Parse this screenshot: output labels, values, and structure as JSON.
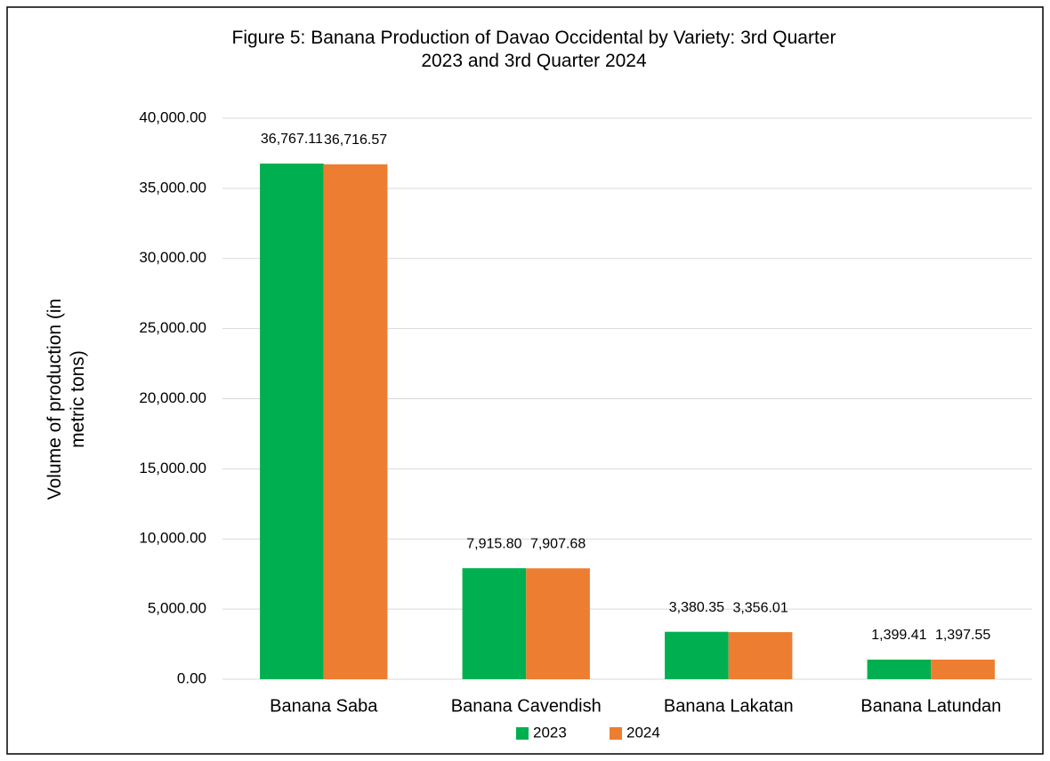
{
  "chart_data": {
    "type": "bar",
    "title": "Figure 5: Banana Production of Davao Occidental by Variety: 3rd Quarter 2023 and 3rd Quarter 2024",
    "ylabel": "Volume of production (in metric tons)",
    "categories": [
      "Banana Saba",
      "Banana Cavendish",
      "Banana Lakatan",
      "Banana Latundan"
    ],
    "series": [
      {
        "name": "2023",
        "color": "#00b050",
        "values": [
          36767.11,
          7915.8,
          3380.35,
          1399.41
        ],
        "value_labels": [
          "36,767.11",
          "7,915.80",
          "3,380.35",
          "1,399.41"
        ]
      },
      {
        "name": "2024",
        "color": "#ed7d31",
        "values": [
          36716.57,
          7907.68,
          3356.01,
          1397.55
        ],
        "value_labels": [
          "36,716.57",
          "7,907.68",
          "3,356.01",
          "1,397.55"
        ]
      }
    ],
    "ylim": [
      0,
      40000
    ],
    "yticks": [
      {
        "value": 0,
        "label": "0.00"
      },
      {
        "value": 5000,
        "label": "5,000.00"
      },
      {
        "value": 10000,
        "label": "10,000.00"
      },
      {
        "value": 15000,
        "label": "15,000.00"
      },
      {
        "value": 20000,
        "label": "20,000.00"
      },
      {
        "value": 25000,
        "label": "25,000.00"
      },
      {
        "value": 30000,
        "label": "30,000.00"
      },
      {
        "value": 35000,
        "label": "35,000.00"
      },
      {
        "value": 40000,
        "label": "40,000.00"
      }
    ],
    "grid": true,
    "legend": "bottom"
  }
}
